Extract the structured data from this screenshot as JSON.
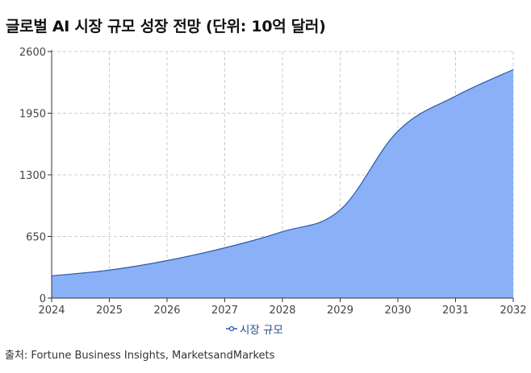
{
  "title": "글로벌 AI 시장 규모 성장 전망 (단위: 10억 달러)",
  "source": "출처: Fortune Business Insights, MarketsandMarkets",
  "colors": {
    "fill": "#8ab1f8",
    "line": "#2e5aa8",
    "grid": "#cccccc",
    "axis": "#333333"
  },
  "chart_data": {
    "type": "area",
    "title": "글로벌 AI 시장 규모 성장 전망 (단위: 10억 달러)",
    "xlabel": "",
    "ylabel": "",
    "x_ticks": [
      "2024",
      "2025",
      "2026",
      "2027",
      "2028",
      "2029",
      "2030",
      "2031",
      "2032"
    ],
    "y_ticks": [
      "0",
      "650",
      "1300",
      "1950",
      "2600"
    ],
    "xlim": [
      2024,
      2032
    ],
    "ylim": [
      0,
      2600
    ],
    "grid": true,
    "legend_position": "bottom",
    "series": [
      {
        "name": "시장 규모",
        "x": [
          2024,
          2025,
          2026,
          2027,
          2028,
          2029,
          2030,
          2031,
          2032
        ],
        "values": [
          235,
          295,
          395,
          530,
          700,
          930,
          1760,
          2130,
          2410
        ]
      }
    ]
  }
}
